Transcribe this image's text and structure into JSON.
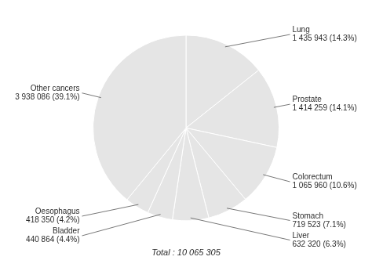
{
  "chart_data": {
    "type": "pie",
    "categories": [
      "Lung",
      "Prostate",
      "Colorectum",
      "Stomach",
      "Liver",
      "Bladder",
      "Oesophagus",
      "Other cancers"
    ],
    "values": [
      14.3,
      14.1,
      10.6,
      7.1,
      6.3,
      4.4,
      4.2,
      39.1
    ],
    "data_labels": true,
    "value_labels": [
      "1 435 943 (14.3%)",
      "1 414 259 (14.1%)",
      "1 065 960 (10.6%)",
      "719 523 (7.1%)",
      "632 320 (6.3%)",
      "440 864 (4.4%)",
      "418 350 (4.2%)",
      "3 938 086 (39.1%)"
    ],
    "annotations": [
      "Total : 10 065 305"
    ]
  }
}
